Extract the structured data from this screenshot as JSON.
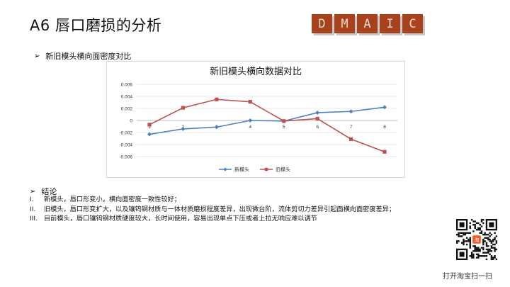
{
  "slide": {
    "title": "A6  唇口磨损的分析"
  },
  "dmaic": [
    "D",
    "M",
    "A",
    "I",
    "C"
  ],
  "section1": {
    "bullet": "➢",
    "heading": "新旧模头横向面密度对比"
  },
  "chart_data": {
    "type": "line",
    "title": "新旧模头横向数据对比",
    "categories": [
      "1",
      "2",
      "3",
      "4",
      "5",
      "6",
      "7",
      "8"
    ],
    "yticks": [
      "0.006",
      "0.004",
      "0.002",
      "0",
      "-0.002",
      "-0.004",
      "-0.006"
    ],
    "ylim": [
      -0.006,
      0.006
    ],
    "series": [
      {
        "name": "新模头",
        "color": "#4f81bd",
        "marker": "diamond",
        "values": [
          -0.0023,
          -0.0014,
          -0.0011,
          0.0,
          -0.0001,
          0.0013,
          0.0015,
          0.0022
        ]
      },
      {
        "name": "旧模头",
        "color": "#c0504d",
        "marker": "square",
        "values": [
          -0.0007,
          0.0021,
          0.0035,
          0.0031,
          -0.0001,
          0.0003,
          -0.0031,
          -0.0052
        ]
      }
    ],
    "legend_position": "bottom"
  },
  "section2": {
    "bullet": "➢",
    "heading": "结论",
    "items": [
      {
        "num": "I.",
        "text": "新模头，唇口形变小，横向面密度一致性较好；"
      },
      {
        "num": "II.",
        "text": "旧模头，唇口形变扩大，以及镶钨钢材质与一体材质磨损程度差异，出现微台阶，流体剪切力差异引起面横向面密度差异；"
      },
      {
        "num": "III.",
        "text": "目前模头，唇口镶钨钢材质硬度较大，长时间使用，容易出现单点下压或者上拉无响应难以调节"
      }
    ]
  },
  "qr": {
    "caption": "打开淘宝扫一扫",
    "center_label": "淘"
  }
}
